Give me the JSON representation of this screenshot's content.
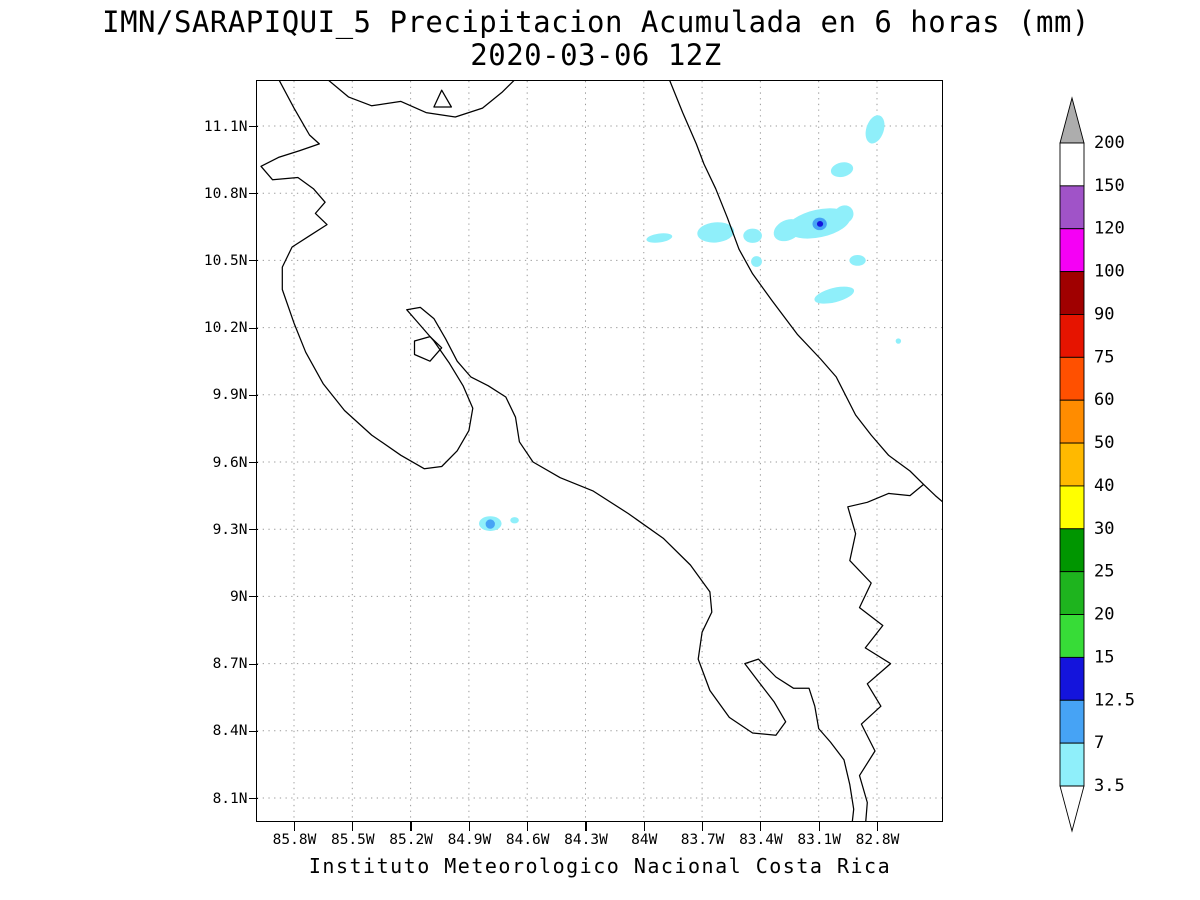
{
  "title": {
    "line1": "IMN/SARAPIQUI_5 Precipitacion Acumulada en 6 horas (mm)",
    "line2": "2020-03-06 12Z"
  },
  "footer": "Instituto  Meteorologico  Nacional  Costa  Rica",
  "map": {
    "y_tick_labels": [
      "11.1N",
      "10.8N",
      "10.5N",
      "10.2N",
      "9.9N",
      "9.6N",
      "9.3N",
      "9N",
      "8.7N",
      "8.4N",
      "8.1N"
    ],
    "x_tick_labels": [
      "85.8W",
      "85.5W",
      "85.2W",
      "84.9W",
      "84.6W",
      "84.3W",
      "84W",
      "83.7W",
      "83.4W",
      "83.1W",
      "82.8W"
    ]
  },
  "colorbar": {
    "labels_top_to_bottom": [
      "200",
      "150",
      "120",
      "100",
      "90",
      "75",
      "60",
      "50",
      "40",
      "30",
      "25",
      "20",
      "15",
      "12.5",
      "7",
      "3.5"
    ],
    "segment_colors_top_to_bottom": [
      "#FFFFFF",
      "#A053C8",
      "#F500F5",
      "#A00000",
      "#E61400",
      "#FF5000",
      "#FF8C00",
      "#FFB900",
      "#FFFF00",
      "#009600",
      "#1EB41E",
      "#37DC37",
      "#1414DC",
      "#46A3F5",
      "#8FEFFA"
    ],
    "arrow_top_color": "#ADADAD",
    "arrow_bottom_color": "#FFFFFF"
  },
  "chart_data": {
    "type": "map-contour",
    "variable": "Precipitacion Acumulada en 6 horas (mm)",
    "valid_time": "2020-03-06 12Z",
    "lon_w_axis_ticks": [
      85.8,
      85.5,
      85.2,
      84.9,
      84.6,
      84.3,
      84.0,
      83.7,
      83.4,
      83.1,
      82.8
    ],
    "lat_axis_ticks": [
      11.1,
      10.8,
      10.5,
      10.2,
      9.9,
      9.6,
      9.3,
      9.0,
      8.7,
      8.4,
      8.1
    ],
    "shading_levels_mm": [
      3.5,
      7,
      12.5,
      15,
      20,
      25,
      30,
      40,
      50,
      60,
      75,
      90,
      100,
      120,
      150,
      200
    ],
    "level_colors": {
      "3.5": "#8FEFFA",
      "7": "#46A3F5",
      "12.5": "#1414DC"
    },
    "precipitation_cells": [
      {
        "lon_w": 83.1,
        "lat": 10.665,
        "rx": 0.165,
        "ry": 0.062,
        "rot": -12,
        "level": "3.5"
      },
      {
        "lon_w": 82.97,
        "lat": 10.705,
        "rx": 0.05,
        "ry": 0.04,
        "rot": -30,
        "level": "3.5"
      },
      {
        "lon_w": 83.26,
        "lat": 10.635,
        "rx": 0.075,
        "ry": 0.045,
        "rot": -25,
        "level": "3.5"
      },
      {
        "lon_w": 83.63,
        "lat": 10.625,
        "rx": 0.095,
        "ry": 0.045,
        "rot": -5,
        "level": "3.5"
      },
      {
        "lon_w": 83.92,
        "lat": 10.6,
        "rx": 0.067,
        "ry": 0.02,
        "rot": -8,
        "level": "3.5"
      },
      {
        "lon_w": 83.44,
        "lat": 10.61,
        "rx": 0.048,
        "ry": 0.032,
        "rot": 0,
        "level": "3.5"
      },
      {
        "lon_w": 83.42,
        "lat": 10.495,
        "rx": 0.028,
        "ry": 0.024,
        "rot": 0,
        "level": "3.5"
      },
      {
        "lon_w": 82.81,
        "lat": 11.085,
        "rx": 0.045,
        "ry": 0.065,
        "rot": 18,
        "level": "3.5"
      },
      {
        "lon_w": 82.98,
        "lat": 10.905,
        "rx": 0.058,
        "ry": 0.032,
        "rot": -12,
        "level": "3.5"
      },
      {
        "lon_w": 82.9,
        "lat": 10.5,
        "rx": 0.042,
        "ry": 0.024,
        "rot": 0,
        "level": "3.5"
      },
      {
        "lon_w": 83.02,
        "lat": 10.345,
        "rx": 0.105,
        "ry": 0.032,
        "rot": -14,
        "level": "3.5"
      },
      {
        "lon_w": 82.69,
        "lat": 10.14,
        "rx": 0.014,
        "ry": 0.012,
        "rot": 0,
        "level": "3.5"
      },
      {
        "lon_w": 84.79,
        "lat": 9.325,
        "rx": 0.058,
        "ry": 0.033,
        "rot": 0,
        "level": "3.5"
      },
      {
        "lon_w": 84.665,
        "lat": 9.34,
        "rx": 0.022,
        "ry": 0.014,
        "rot": 0,
        "level": "3.5"
      },
      {
        "lon_w": 83.095,
        "lat": 10.663,
        "rx": 0.037,
        "ry": 0.028,
        "rot": 0,
        "level": "7"
      },
      {
        "lon_w": 84.79,
        "lat": 9.323,
        "rx": 0.024,
        "ry": 0.021,
        "rot": 0,
        "level": "7"
      },
      {
        "lon_w": 83.093,
        "lat": 10.663,
        "rx": 0.016,
        "ry": 0.013,
        "rot": 0,
        "level": "12.5"
      }
    ]
  }
}
